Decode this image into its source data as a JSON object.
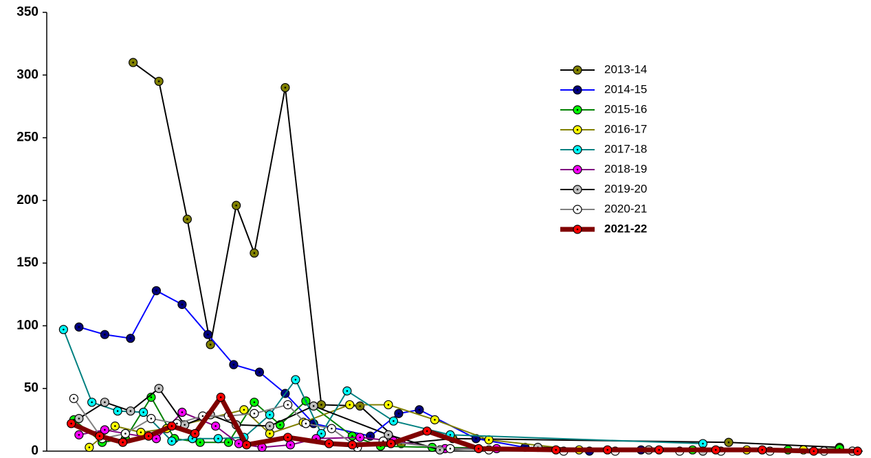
{
  "chart_data": {
    "type": "line",
    "ylim": [
      0,
      350
    ],
    "yticks": [
      0,
      50,
      100,
      150,
      200,
      250,
      300,
      350
    ],
    "xlim": [
      0.25,
      31.9
    ],
    "series": [
      {
        "name": "2013-14",
        "color": "#000000",
        "marker_color": "#808000",
        "line_width": 2,
        "x": [
          3.6,
          4.6,
          5.7,
          6.6,
          7.6,
          8.3,
          9.5,
          10.9,
          12.4,
          14.0,
          16.0,
          26.7,
          31.0
        ],
        "values": [
          310,
          295,
          185,
          85,
          196,
          158,
          290,
          37,
          36,
          6,
          10,
          7,
          3
        ]
      },
      {
        "name": "2014-15",
        "color": "#0000ff",
        "marker_color": "#000080",
        "line_width": 2,
        "x": [
          1.5,
          2.5,
          3.5,
          4.5,
          5.5,
          6.5,
          7.5,
          8.5,
          9.5,
          10.6,
          12.8,
          13.9,
          14.7,
          16.9,
          18.8,
          21.3,
          23.3
        ],
        "values": [
          99,
          93,
          90,
          128,
          117,
          93,
          69,
          63,
          46,
          22,
          12,
          30,
          33,
          10,
          3,
          0,
          1
        ]
      },
      {
        "name": "2015-16",
        "color": "#008000",
        "marker_color": "#00ff00",
        "line_width": 2,
        "x": [
          1.3,
          2.4,
          3.3,
          4.3,
          5.2,
          6.2,
          7.3,
          8.3,
          9.3,
          10.3,
          12.1,
          13.2,
          15.2,
          25.3,
          29.0,
          31.0
        ],
        "values": [
          25,
          7,
          10,
          43,
          10,
          7,
          7,
          39,
          21,
          40,
          12,
          4,
          3,
          1,
          1,
          2
        ]
      },
      {
        "name": "2016-17",
        "color": "#808000",
        "marker_color": "#ffff00",
        "line_width": 2,
        "x": [
          1.9,
          2.9,
          3.9,
          4.9,
          7.9,
          8.9,
          10.2,
          12.0,
          13.5,
          15.3,
          17.4,
          20.9,
          27.4,
          29.6
        ],
        "values": [
          3,
          20,
          15,
          18,
          33,
          14,
          23,
          37,
          37,
          25,
          9,
          1,
          1,
          1
        ]
      },
      {
        "name": "2017-18",
        "color": "#008080",
        "marker_color": "#00ffff",
        "line_width": 2,
        "x": [
          0.9,
          2.0,
          3.0,
          4.0,
          5.1,
          5.9,
          6.9,
          7.9,
          8.9,
          9.9,
          10.9,
          11.9,
          13.7,
          15.9,
          25.7
        ],
        "values": [
          97,
          39,
          32,
          31,
          8,
          10,
          10,
          11,
          29,
          57,
          14,
          48,
          24,
          13,
          6
        ]
      },
      {
        "name": "2018-19",
        "color": "#800080",
        "marker_color": "#ff00ff",
        "line_width": 2,
        "x": [
          1.5,
          2.5,
          3.3,
          4.5,
          5.5,
          6.8,
          7.7,
          8.6,
          9.7,
          10.7,
          12.4,
          13.7,
          15.7,
          17.7
        ],
        "values": [
          13,
          17,
          14,
          10,
          31,
          20,
          6,
          3,
          5,
          10,
          11,
          8,
          2,
          2
        ]
      },
      {
        "name": "2019-20",
        "color": "#000000",
        "marker_color": "#c0c0c0",
        "line_width": 2,
        "x": [
          1.5,
          2.5,
          3.5,
          4.6,
          5.6,
          6.6,
          7.6,
          8.9,
          10.6,
          13.5,
          15.5,
          19.3,
          23.6,
          25.7
        ],
        "values": [
          26,
          39,
          32,
          50,
          21,
          29,
          21,
          20,
          36,
          13,
          1,
          3,
          1,
          0
        ]
      },
      {
        "name": "2020-21",
        "color": "#808080",
        "marker_color": "#ffffff",
        "line_width": 2,
        "x": [
          1.3,
          2.4,
          3.3,
          4.3,
          5.3,
          6.3,
          7.3,
          8.3,
          9.6,
          10.3,
          11.3,
          12.3,
          13.3,
          15.9,
          17.4,
          20.3,
          22.3,
          24.8,
          26.4,
          28.3,
          30.4,
          31.5
        ],
        "values": [
          42,
          10,
          14,
          26,
          22,
          28,
          28,
          30,
          37,
          22,
          18,
          3,
          8,
          2,
          1,
          0,
          0,
          0,
          0,
          0,
          0,
          0
        ]
      },
      {
        "name": "2021-22",
        "color": "#800000",
        "marker_color": "#ff0000",
        "line_width": 7,
        "x": [
          1.2,
          2.3,
          3.2,
          4.2,
          5.1,
          6.0,
          7.0,
          8.0,
          9.6,
          11.2,
          12.1,
          13.6,
          15.0,
          17.0,
          20.0,
          22.0,
          24.0,
          26.2,
          28.0,
          30.0,
          31.7
        ],
        "values": [
          22,
          12,
          7,
          12,
          20,
          14,
          43,
          5,
          11,
          6,
          5,
          6,
          16,
          2,
          1,
          1,
          1,
          1,
          1,
          0,
          0
        ]
      }
    ]
  }
}
